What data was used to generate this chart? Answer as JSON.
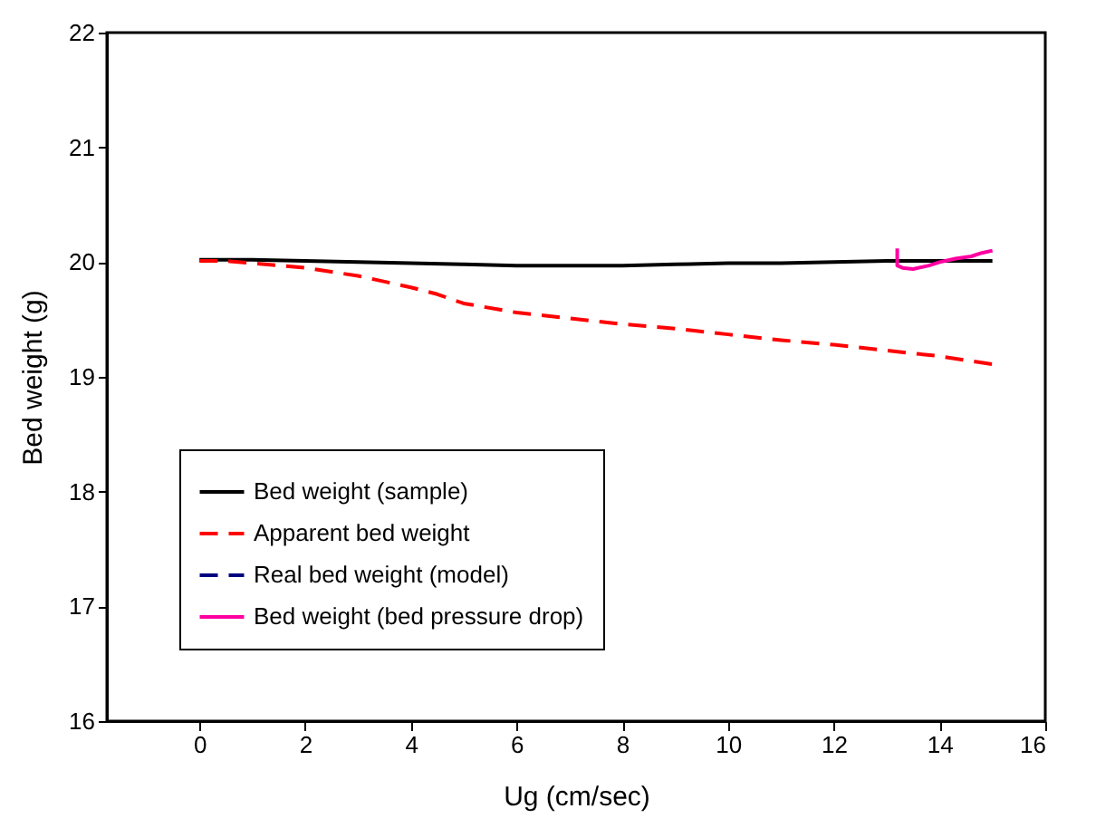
{
  "chart_data": {
    "type": "line",
    "xlabel": "Ug (cm/sec)",
    "ylabel": "Bed weight (g)",
    "xlim": [
      -1.75,
      16
    ],
    "xticks": [
      0,
      2,
      4,
      6,
      8,
      10,
      12,
      14,
      16
    ],
    "ylim": [
      16,
      22
    ],
    "yticks": [
      16,
      17,
      18,
      19,
      20,
      21,
      22
    ],
    "grid": false,
    "legend": "bottom left",
    "series": [
      {
        "name": "Bed weight (sample)",
        "color": "#000000",
        "line_style": "solid",
        "x": [
          0,
          1,
          2,
          3,
          4,
          5,
          6,
          7,
          8,
          9,
          10,
          11,
          12,
          13,
          14,
          15
        ],
        "values": [
          20.02,
          20.02,
          20.01,
          20.0,
          19.99,
          19.98,
          19.97,
          19.97,
          19.97,
          19.98,
          19.99,
          19.99,
          20.0,
          20.01,
          20.01,
          20.01
        ]
      },
      {
        "name": "Apparent bed weight",
        "color": "#ff0000",
        "line_style": "dashed",
        "x": [
          0,
          0.5,
          1,
          2,
          3,
          4,
          4.5,
          5,
          6,
          7,
          8,
          9,
          10,
          11,
          12,
          13,
          14,
          15
        ],
        "values": [
          20.01,
          20.01,
          19.99,
          19.95,
          19.88,
          19.78,
          19.72,
          19.64,
          19.56,
          19.51,
          19.46,
          19.42,
          19.37,
          19.32,
          19.28,
          19.23,
          19.18,
          19.11
        ]
      },
      {
        "name": "Real bed weight (model)",
        "color": "#000080",
        "line_style": "dashed"
      },
      {
        "name": "Bed weight (bed pressure drop)",
        "color": "#ff00a0",
        "line_style": "solid",
        "x": [
          13.2,
          13.2,
          13.3,
          13.5,
          13.8,
          14,
          14.3,
          14.6,
          14.8,
          15
        ],
        "values": [
          20.12,
          19.97,
          19.95,
          19.94,
          19.97,
          20.0,
          20.03,
          20.05,
          20.08,
          20.1
        ]
      }
    ]
  }
}
